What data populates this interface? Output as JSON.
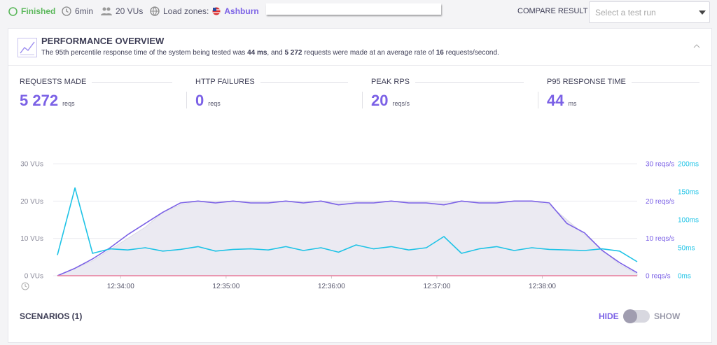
{
  "header": {
    "status": "Finished",
    "duration": "6min",
    "vus": "20 VUs",
    "load_zones_label": "Load zones:",
    "load_zone": "Ashburn",
    "compare_label": "COMPARE RESULT",
    "compare_placeholder": "Select a test run"
  },
  "overview": {
    "title": "PERFORMANCE OVERVIEW",
    "summary": [
      "The 95th percentile response time of the system being tested was ",
      "44 ms",
      ", and ",
      "5 272",
      " requests were made at an average rate of ",
      "16",
      " requests/second."
    ],
    "metrics": [
      {
        "label": "REQUESTS MADE",
        "value": "5 272",
        "unit": "reqs"
      },
      {
        "label": "HTTP FAILURES",
        "value": "0",
        "unit": "reqs"
      },
      {
        "label": "PEAK RPS",
        "value": "20",
        "unit": "reqs/s"
      },
      {
        "label": "P95 RESPONSE TIME",
        "value": "44",
        "unit": "ms"
      }
    ]
  },
  "chart_data": {
    "type": "line",
    "x": [
      "12:33:24",
      "12:33:34",
      "12:33:44",
      "12:33:54",
      "12:34:04",
      "12:34:14",
      "12:34:24",
      "12:34:34",
      "12:34:44",
      "12:34:54",
      "12:35:04",
      "12:35:14",
      "12:35:24",
      "12:35:34",
      "12:35:44",
      "12:35:54",
      "12:36:04",
      "12:36:14",
      "12:36:24",
      "12:36:34",
      "12:36:44",
      "12:36:54",
      "12:37:04",
      "12:37:14",
      "12:37:24",
      "12:37:34",
      "12:37:44",
      "12:37:54",
      "12:38:04",
      "12:38:14",
      "12:38:24",
      "12:38:34",
      "12:38:44",
      "12:38:54"
    ],
    "xlim": [
      "12:33:24",
      "12:38:54"
    ],
    "xticks": [
      "12:34:00",
      "12:35:00",
      "12:36:00",
      "12:37:00",
      "12:38:00"
    ],
    "ylim": [
      0,
      30
    ],
    "yticks": [
      {
        "value": 0,
        "label": "0 VUs"
      },
      {
        "value": 10,
        "label": "10 VUs"
      },
      {
        "value": 20,
        "label": "20 VUs"
      },
      {
        "value": 30,
        "label": "30 VUs"
      }
    ],
    "y2lim": [
      0,
      30
    ],
    "y2ticks": [
      {
        "value": 0,
        "label": "0 reqs/s"
      },
      {
        "value": 10,
        "label": "10 reqs/s"
      },
      {
        "value": 20,
        "label": "20 reqs/s"
      },
      {
        "value": 30,
        "label": "30 reqs/s"
      }
    ],
    "y3lim": [
      0,
      200
    ],
    "y3ticks": [
      {
        "value": 0,
        "label": "0ms"
      },
      {
        "value": 50,
        "label": "50ms"
      },
      {
        "value": 100,
        "label": "100ms"
      },
      {
        "value": 150,
        "label": "150ms"
      },
      {
        "value": 200,
        "label": "200ms"
      }
    ],
    "grid": true,
    "series": [
      {
        "axis": "y",
        "color": "#ebeaf2",
        "fill": true,
        "values": [
          0,
          2,
          4,
          7,
          10,
          13,
          17,
          19,
          20,
          20,
          20,
          20,
          20,
          20,
          20,
          20,
          20,
          20,
          20,
          20,
          20,
          20,
          20,
          20,
          20,
          20,
          20,
          20,
          19,
          15,
          11,
          7,
          3,
          0.5
        ]
      },
      {
        "axis": "y2",
        "color": "#7b61e6",
        "values": [
          0,
          2,
          4.5,
          7.5,
          11,
          14,
          17,
          19.5,
          20,
          19.5,
          20,
          19.5,
          19.5,
          20,
          19.5,
          20,
          19,
          19.5,
          19.5,
          20,
          19.5,
          19.5,
          19,
          20,
          19.5,
          19.5,
          20,
          20,
          19.5,
          14,
          11.5,
          6.8,
          3.5,
          0.8
        ]
      },
      {
        "axis": "y3",
        "color": "#1ec3e6",
        "values": [
          37,
          157,
          40,
          48,
          46,
          50,
          44,
          47,
          52,
          44,
          47,
          48,
          46,
          52,
          45,
          50,
          42,
          55,
          48,
          52,
          46,
          50,
          70,
          40,
          48,
          52,
          45,
          50,
          47,
          46,
          45,
          48,
          44,
          25
        ]
      }
    ]
  },
  "scenarios": {
    "title": "SCENARIOS (1)",
    "hide": "HIDE",
    "show": "SHOW"
  }
}
